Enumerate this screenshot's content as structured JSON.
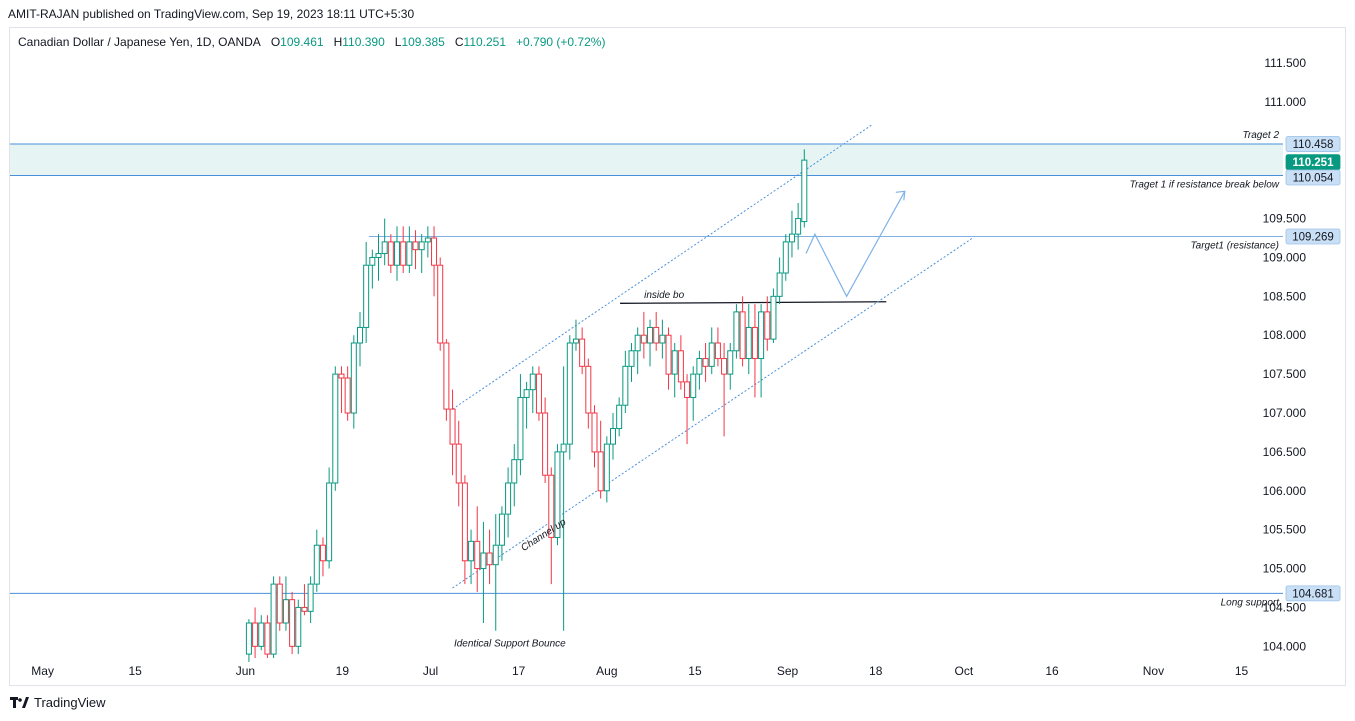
{
  "header": {
    "published_text": "AMIT-RAJAN published on TradingView.com, Sep 19, 2023 18:11 UTC+5:30"
  },
  "legend": {
    "symbol": "Canadian Dollar / Japanese Yen, 1D, OANDA",
    "open_label": "O",
    "open": "109.461",
    "high_label": "H",
    "high": "110.390",
    "low_label": "L",
    "low": "109.385",
    "close_label": "C",
    "close": "110.251",
    "change": "+0.790 (+0.72%)"
  },
  "footer": {
    "brand": "TradingView"
  },
  "colors": {
    "up": "#089981",
    "down": "#f23645",
    "level": "#4a90d9",
    "zone": "#e6f4f4",
    "current_price": "#089981"
  },
  "chart_data": {
    "type": "candlestick",
    "y_ticks": [
      "111.500",
      "111.000",
      "109.500",
      "109.000",
      "108.500",
      "108.000",
      "107.500",
      "107.000",
      "106.500",
      "106.000",
      "105.500",
      "105.000",
      "104.500",
      "104.000"
    ],
    "ylim": [
      103.85,
      111.95
    ],
    "x_tick_labels": [
      "May",
      "15",
      "Jun",
      "19",
      "Jul",
      "17",
      "Aug",
      "15",
      "Sep",
      "18",
      "Oct",
      "16",
      "Nov",
      "15"
    ],
    "x_tick_positions": [
      0,
      10.5,
      23,
      34,
      44,
      54,
      64,
      74,
      84.5,
      94.5,
      104.5,
      114.5,
      126,
      136
    ],
    "price_tags": [
      {
        "value": 110.458,
        "label": "110.458",
        "style": "level"
      },
      {
        "value": 110.251,
        "label": "110.251",
        "style": "current"
      },
      {
        "value": 110.054,
        "label": "110.054",
        "style": "level"
      },
      {
        "value": 109.269,
        "label": "109.269",
        "style": "level"
      },
      {
        "value": 104.681,
        "label": "104.681",
        "style": "level"
      }
    ],
    "annotations": [
      {
        "text": "Traget 2",
        "value": 110.458
      },
      {
        "text": "Traget 1 if resistance break below",
        "value": 110.054
      },
      {
        "text": "Target1 (resistance)",
        "value": 109.269
      },
      {
        "text": "Long support",
        "value": 104.681
      },
      {
        "text": "inside bo",
        "value": 108.43
      },
      {
        "text": "Channel up",
        "value": 105.4
      },
      {
        "text": "Identical Support Bounce",
        "value": 104.0
      }
    ],
    "candles": [
      {
        "t": 23.4,
        "o": 103.9,
        "h": 104.35,
        "l": 103.8,
        "c": 104.3
      },
      {
        "t": 24.1,
        "o": 104.3,
        "h": 104.5,
        "l": 103.85,
        "c": 104.0
      },
      {
        "t": 24.8,
        "o": 104.0,
        "h": 104.4,
        "l": 103.95,
        "c": 104.3
      },
      {
        "t": 25.5,
        "o": 104.3,
        "h": 104.4,
        "l": 103.85,
        "c": 103.9
      },
      {
        "t": 26.2,
        "o": 103.9,
        "h": 104.9,
        "l": 103.85,
        "c": 104.8
      },
      {
        "t": 26.9,
        "o": 104.8,
        "h": 104.9,
        "l": 104.2,
        "c": 104.3
      },
      {
        "t": 27.6,
        "o": 104.3,
        "h": 104.9,
        "l": 104.2,
        "c": 104.6
      },
      {
        "t": 28.3,
        "o": 104.6,
        "h": 104.7,
        "l": 103.9,
        "c": 104.0
      },
      {
        "t": 29.0,
        "o": 104.0,
        "h": 104.6,
        "l": 103.9,
        "c": 104.5
      },
      {
        "t": 29.7,
        "o": 104.5,
        "h": 104.8,
        "l": 104.4,
        "c": 104.45
      },
      {
        "t": 30.4,
        "o": 104.45,
        "h": 104.9,
        "l": 104.3,
        "c": 104.8
      },
      {
        "t": 31.1,
        "o": 104.8,
        "h": 105.5,
        "l": 104.7,
        "c": 105.3
      },
      {
        "t": 31.8,
        "o": 105.3,
        "h": 105.4,
        "l": 104.9,
        "c": 105.1
      },
      {
        "t": 32.5,
        "o": 105.1,
        "h": 106.3,
        "l": 105.0,
        "c": 106.1
      },
      {
        "t": 33.2,
        "o": 106.1,
        "h": 107.6,
        "l": 106.0,
        "c": 107.5
      },
      {
        "t": 33.9,
        "o": 107.5,
        "h": 107.6,
        "l": 107.0,
        "c": 107.45
      },
      {
        "t": 34.6,
        "o": 107.45,
        "h": 107.6,
        "l": 106.9,
        "c": 107.0
      },
      {
        "t": 35.3,
        "o": 107.0,
        "h": 108.0,
        "l": 106.8,
        "c": 107.9
      },
      {
        "t": 36.0,
        "o": 107.9,
        "h": 108.3,
        "l": 107.6,
        "c": 108.1
      },
      {
        "t": 36.7,
        "o": 108.1,
        "h": 109.2,
        "l": 107.9,
        "c": 108.9
      },
      {
        "t": 37.4,
        "o": 108.9,
        "h": 109.1,
        "l": 108.6,
        "c": 109.0
      },
      {
        "t": 38.1,
        "o": 109.0,
        "h": 109.3,
        "l": 108.7,
        "c": 109.05
      },
      {
        "t": 38.8,
        "o": 109.05,
        "h": 109.5,
        "l": 108.9,
        "c": 109.2
      },
      {
        "t": 39.5,
        "o": 109.2,
        "h": 109.3,
        "l": 108.8,
        "c": 108.9
      },
      {
        "t": 40.2,
        "o": 108.9,
        "h": 109.4,
        "l": 108.7,
        "c": 109.2
      },
      {
        "t": 40.9,
        "o": 109.2,
        "h": 109.4,
        "l": 108.8,
        "c": 108.9
      },
      {
        "t": 41.6,
        "o": 108.9,
        "h": 109.4,
        "l": 108.8,
        "c": 109.2
      },
      {
        "t": 42.3,
        "o": 109.2,
        "h": 109.35,
        "l": 108.85,
        "c": 109.1
      },
      {
        "t": 43.0,
        "o": 109.1,
        "h": 109.3,
        "l": 108.8,
        "c": 109.2
      },
      {
        "t": 43.7,
        "o": 109.2,
        "h": 109.4,
        "l": 109.0,
        "c": 109.25
      },
      {
        "t": 44.4,
        "o": 109.25,
        "h": 109.4,
        "l": 108.5,
        "c": 108.9
      },
      {
        "t": 45.1,
        "o": 108.9,
        "h": 109.0,
        "l": 107.8,
        "c": 107.9
      },
      {
        "t": 45.8,
        "o": 107.9,
        "h": 107.95,
        "l": 106.9,
        "c": 107.05
      },
      {
        "t": 46.5,
        "o": 107.05,
        "h": 107.3,
        "l": 106.2,
        "c": 106.6
      },
      {
        "t": 47.2,
        "o": 106.6,
        "h": 106.9,
        "l": 105.8,
        "c": 106.1
      },
      {
        "t": 47.9,
        "o": 106.1,
        "h": 106.2,
        "l": 104.8,
        "c": 105.1
      },
      {
        "t": 48.6,
        "o": 105.1,
        "h": 105.5,
        "l": 104.8,
        "c": 105.35
      },
      {
        "t": 49.3,
        "o": 105.35,
        "h": 105.8,
        "l": 104.7,
        "c": 105.0
      },
      {
        "t": 50.0,
        "o": 105.0,
        "h": 105.6,
        "l": 104.3,
        "c": 105.2
      },
      {
        "t": 50.7,
        "o": 105.2,
        "h": 105.5,
        "l": 104.8,
        "c": 105.05
      },
      {
        "t": 51.4,
        "o": 105.05,
        "h": 105.7,
        "l": 104.2,
        "c": 105.3
      },
      {
        "t": 52.1,
        "o": 105.3,
        "h": 105.8,
        "l": 105.1,
        "c": 105.7
      },
      {
        "t": 52.8,
        "o": 105.7,
        "h": 106.3,
        "l": 105.4,
        "c": 106.1
      },
      {
        "t": 53.5,
        "o": 106.1,
        "h": 106.6,
        "l": 105.8,
        "c": 106.4
      },
      {
        "t": 54.2,
        "o": 106.4,
        "h": 107.5,
        "l": 106.2,
        "c": 107.2
      },
      {
        "t": 54.9,
        "o": 107.2,
        "h": 107.4,
        "l": 106.8,
        "c": 107.3
      },
      {
        "t": 55.6,
        "o": 107.3,
        "h": 107.6,
        "l": 107.0,
        "c": 107.5
      },
      {
        "t": 56.3,
        "o": 107.5,
        "h": 107.6,
        "l": 106.9,
        "c": 107.0
      },
      {
        "t": 57.0,
        "o": 107.0,
        "h": 107.2,
        "l": 106.1,
        "c": 106.2
      },
      {
        "t": 57.7,
        "o": 106.2,
        "h": 106.3,
        "l": 104.8,
        "c": 105.4
      },
      {
        "t": 58.4,
        "o": 105.4,
        "h": 106.6,
        "l": 105.3,
        "c": 106.5
      },
      {
        "t": 59.1,
        "o": 106.5,
        "h": 107.6,
        "l": 104.2,
        "c": 106.6
      },
      {
        "t": 59.8,
        "o": 106.6,
        "h": 108.0,
        "l": 106.4,
        "c": 107.9
      },
      {
        "t": 60.5,
        "o": 107.9,
        "h": 108.2,
        "l": 107.8,
        "c": 107.95
      },
      {
        "t": 61.2,
        "o": 107.95,
        "h": 108.1,
        "l": 107.5,
        "c": 107.6
      },
      {
        "t": 61.9,
        "o": 107.6,
        "h": 107.7,
        "l": 106.8,
        "c": 107.0
      },
      {
        "t": 62.6,
        "o": 107.0,
        "h": 107.1,
        "l": 106.3,
        "c": 106.5
      },
      {
        "t": 63.3,
        "o": 106.5,
        "h": 106.9,
        "l": 105.9,
        "c": 106.0
      },
      {
        "t": 64.0,
        "o": 106.0,
        "h": 106.7,
        "l": 105.85,
        "c": 106.6
      },
      {
        "t": 64.7,
        "o": 106.6,
        "h": 107.0,
        "l": 106.4,
        "c": 106.8
      },
      {
        "t": 65.4,
        "o": 106.8,
        "h": 107.2,
        "l": 106.7,
        "c": 107.1
      },
      {
        "t": 66.1,
        "o": 107.1,
        "h": 107.8,
        "l": 107.0,
        "c": 107.6
      },
      {
        "t": 66.8,
        "o": 107.6,
        "h": 107.9,
        "l": 107.4,
        "c": 107.8
      },
      {
        "t": 67.5,
        "o": 107.8,
        "h": 108.1,
        "l": 107.5,
        "c": 108.0
      },
      {
        "t": 68.2,
        "o": 108.0,
        "h": 108.3,
        "l": 107.7,
        "c": 107.9
      },
      {
        "t": 68.9,
        "o": 107.9,
        "h": 108.2,
        "l": 107.6,
        "c": 108.1
      },
      {
        "t": 69.6,
        "o": 108.1,
        "h": 108.3,
        "l": 107.8,
        "c": 107.9
      },
      {
        "t": 70.3,
        "o": 107.9,
        "h": 108.2,
        "l": 107.7,
        "c": 108.0
      },
      {
        "t": 71.0,
        "o": 108.0,
        "h": 108.1,
        "l": 107.3,
        "c": 107.5
      },
      {
        "t": 71.7,
        "o": 107.5,
        "h": 107.9,
        "l": 107.2,
        "c": 107.8
      },
      {
        "t": 72.4,
        "o": 107.8,
        "h": 108.0,
        "l": 107.3,
        "c": 107.4
      },
      {
        "t": 73.1,
        "o": 107.4,
        "h": 107.5,
        "l": 106.6,
        "c": 107.2
      },
      {
        "t": 73.8,
        "o": 107.2,
        "h": 107.6,
        "l": 106.9,
        "c": 107.5
      },
      {
        "t": 74.5,
        "o": 107.5,
        "h": 107.8,
        "l": 107.3,
        "c": 107.7
      },
      {
        "t": 75.2,
        "o": 107.7,
        "h": 107.9,
        "l": 107.4,
        "c": 107.6
      },
      {
        "t": 75.9,
        "o": 107.6,
        "h": 108.1,
        "l": 107.5,
        "c": 107.9
      },
      {
        "t": 76.6,
        "o": 107.9,
        "h": 108.1,
        "l": 107.6,
        "c": 107.7
      },
      {
        "t": 77.3,
        "o": 107.7,
        "h": 107.9,
        "l": 106.7,
        "c": 107.5
      },
      {
        "t": 78.0,
        "o": 107.5,
        "h": 107.9,
        "l": 107.3,
        "c": 107.8
      },
      {
        "t": 78.7,
        "o": 107.8,
        "h": 108.4,
        "l": 107.7,
        "c": 108.3
      },
      {
        "t": 79.4,
        "o": 108.3,
        "h": 108.5,
        "l": 107.6,
        "c": 107.7
      },
      {
        "t": 80.1,
        "o": 107.7,
        "h": 108.4,
        "l": 107.5,
        "c": 108.1
      },
      {
        "t": 80.8,
        "o": 108.1,
        "h": 108.4,
        "l": 107.2,
        "c": 107.7
      },
      {
        "t": 81.5,
        "o": 107.7,
        "h": 108.4,
        "l": 107.2,
        "c": 108.3
      },
      {
        "t": 82.2,
        "o": 108.3,
        "h": 108.5,
        "l": 107.8,
        "c": 107.95
      },
      {
        "t": 82.9,
        "o": 107.95,
        "h": 108.6,
        "l": 107.9,
        "c": 108.5
      },
      {
        "t": 83.6,
        "o": 108.5,
        "h": 109.0,
        "l": 108.4,
        "c": 108.8
      },
      {
        "t": 84.3,
        "o": 108.8,
        "h": 109.3,
        "l": 108.7,
        "c": 109.2
      },
      {
        "t": 85.0,
        "o": 109.2,
        "h": 109.6,
        "l": 109.0,
        "c": 109.3
      },
      {
        "t": 85.7,
        "o": 109.3,
        "h": 109.7,
        "l": 109.1,
        "c": 109.5
      },
      {
        "t": 86.4,
        "o": 109.461,
        "h": 110.39,
        "l": 109.385,
        "c": 110.251
      }
    ]
  }
}
